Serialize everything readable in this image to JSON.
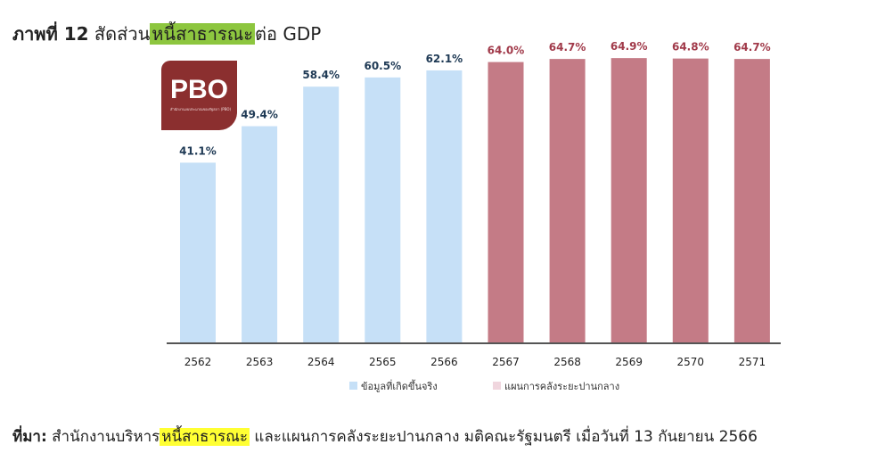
{
  "header": {
    "title_prefix": "ภาพที่ 12",
    "title_mid": " สัดส่วน",
    "title_highlight": "หนี้สาธารณะ",
    "title_suffix": "ต่อ GDP"
  },
  "logo": {
    "text": "PBO",
    "subtext": "สำนักงานงบประมาณของรัฐสภา (PBO)"
  },
  "chart_data": {
    "type": "bar",
    "categories": [
      "2562",
      "2563",
      "2564",
      "2565",
      "2566",
      "2567",
      "2568",
      "2569",
      "2570",
      "2571"
    ],
    "values": [
      41.1,
      49.4,
      58.4,
      60.5,
      62.1,
      64.0,
      64.7,
      64.9,
      64.8,
      64.7
    ],
    "value_labels": [
      "41.1%",
      "49.4%",
      "58.4%",
      "60.5%",
      "62.1%",
      "64.0%",
      "64.7%",
      "64.9%",
      "64.8%",
      "64.7%"
    ],
    "series_of_bar": [
      0,
      0,
      0,
      0,
      0,
      1,
      1,
      1,
      1,
      1
    ],
    "series": [
      {
        "name": "ข้อมูลที่เกิดขึ้นจริง",
        "color": "#c6e0f7",
        "label_color": "#1f3a55"
      },
      {
        "name": "แผนการคลังระยะปานกลาง",
        "color": "#c47b86",
        "label_color": "#a13a4a",
        "legend_color": "#f0d6de"
      }
    ],
    "ylim": [
      0,
      70
    ],
    "xlabel": "",
    "ylabel": "",
    "grid": false,
    "legend_position": "bottom-center"
  },
  "footer": {
    "source_label": "ที่มา:",
    "source_pre": " สำนักงานบริหาร",
    "source_highlight": "หนี้สาธารณะ",
    "source_post": " และแผนการคลังระยะปานกลาง มติคณะรัฐมนตรี เมื่อวันที่ 13 กันยายน 2566"
  }
}
